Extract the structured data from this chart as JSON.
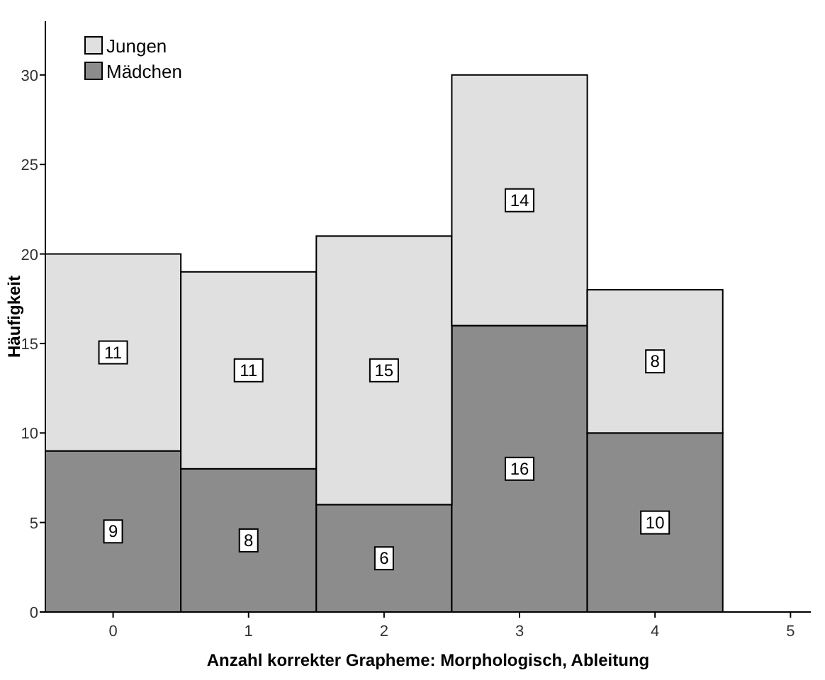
{
  "chart_data": {
    "type": "bar",
    "stacked": true,
    "x": [
      0,
      1,
      2,
      3,
      4
    ],
    "xlim": [
      -0.5,
      5.15
    ],
    "xticks": [
      0,
      1,
      2,
      3,
      4,
      5
    ],
    "ylim": [
      0,
      33
    ],
    "yticks": [
      0,
      5,
      10,
      15,
      20,
      25,
      30
    ],
    "xlabel": "Anzahl korrekter Grapheme: Morphologisch, Ableitung",
    "ylabel": "Häufigkeit",
    "legend": "top left",
    "data_labels": true,
    "series": [
      {
        "name": "Mädchen",
        "color": "#8c8c8c",
        "values": [
          9,
          8,
          6,
          16,
          10
        ]
      },
      {
        "name": "Jungen",
        "color": "#e0e0e0",
        "values": [
          11,
          11,
          15,
          14,
          8
        ]
      }
    ]
  }
}
